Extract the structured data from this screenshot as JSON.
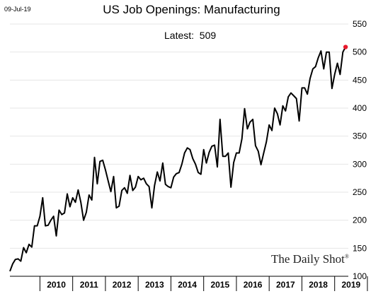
{
  "header": {
    "date": "09-Jul-19",
    "title": "US Job Openings: Manufacturing",
    "latest": "Latest:  509"
  },
  "brand": {
    "name": "The Daily Shot",
    "mark": "®"
  },
  "colors": {
    "line": "#000000",
    "marker": "#e8192c",
    "gridline": "#e6e6e6"
  },
  "chart_data": {
    "type": "line",
    "title": "US Job Openings: Manufacturing",
    "ylim": [
      100,
      550
    ],
    "yticks": [
      100,
      150,
      200,
      250,
      300,
      350,
      400,
      450,
      500,
      550
    ],
    "xlim": [
      2009.083,
      2019.417
    ],
    "x_tick_labels": [
      "2010",
      "2011",
      "2012",
      "2013",
      "2014",
      "2015",
      "2016",
      "2017",
      "2018",
      "2019"
    ],
    "grid": "horizontal",
    "latest_value": 509,
    "series": [
      {
        "x_start": "2009-02",
        "frequency": "monthly",
        "values": [
          109,
          122,
          130,
          131,
          127,
          151,
          142,
          157,
          152,
          190,
          190,
          207,
          240,
          190,
          191,
          200,
          207,
          172,
          218,
          210,
          213,
          247,
          224,
          240,
          232,
          254,
          232,
          200,
          214,
          245,
          236,
          312,
          265,
          305,
          307,
          290,
          270,
          251,
          278,
          222,
          225,
          253,
          258,
          248,
          280,
          253,
          259,
          278,
          272,
          275,
          265,
          260,
          222,
          262,
          286,
          270,
          302,
          264,
          260,
          258,
          277,
          283,
          285,
          300,
          320,
          329,
          326,
          310,
          300,
          285,
          282,
          326,
          302,
          321,
          332,
          334,
          295,
          380,
          314,
          314,
          320,
          259,
          303,
          320,
          320,
          345,
          399,
          363,
          375,
          380,
          333,
          323,
          299,
          320,
          340,
          370,
          360,
          400,
          390,
          370,
          404,
          395,
          420,
          427,
          422,
          417,
          377,
          436,
          436,
          425,
          453,
          470,
          474,
          490,
          502,
          470,
          500,
          500,
          435,
          460,
          480,
          460,
          500,
          509
        ]
      }
    ]
  }
}
